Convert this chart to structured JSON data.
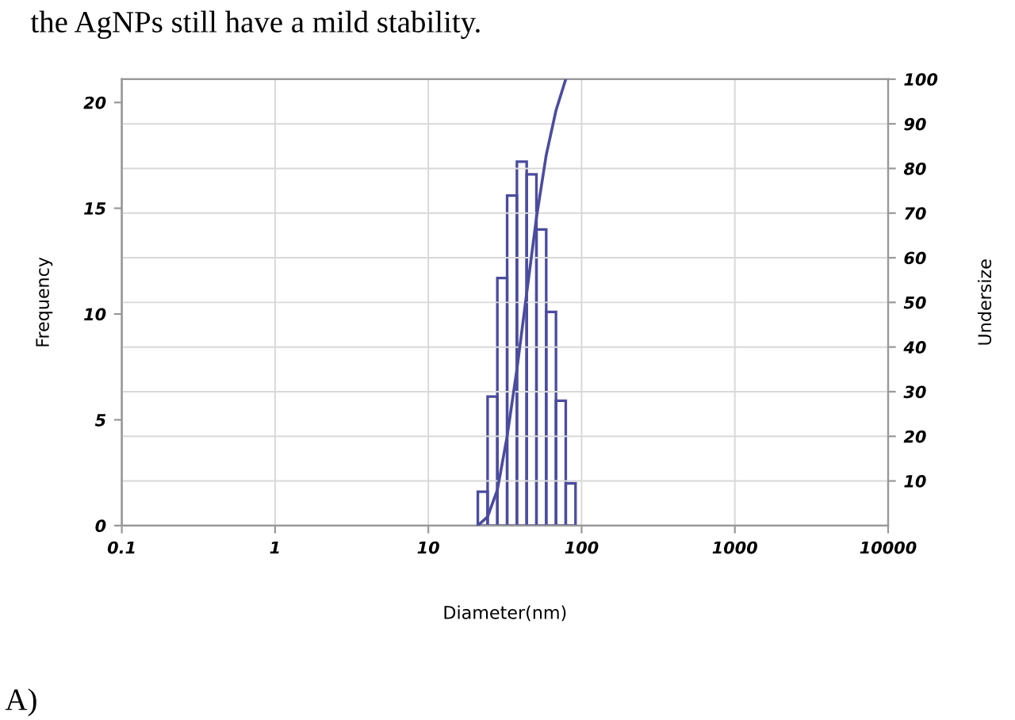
{
  "chart_data": {
    "type": "histogram",
    "xlabel": "Diameter(nm)",
    "ylabel": "Frequency",
    "y2label": "Undersize",
    "annotations": [
      "the AgNPs still have a mild stability.",
      "A)"
    ],
    "log": "x",
    "grid": true,
    "xlim": [
      0.1,
      10000
    ],
    "xticks": [
      0.1,
      1,
      10,
      100,
      1000,
      10000
    ],
    "ylim": [
      0,
      21.1
    ],
    "yticks": [
      0,
      5,
      10,
      15,
      20
    ],
    "y2lim": [
      0,
      100
    ],
    "y2ticks": [
      10,
      20,
      30,
      40,
      50,
      60,
      70,
      80,
      90,
      100
    ],
    "series": [
      {
        "color": "#4b4c9e",
        "bins": [
          21.04,
          24.36,
          28.21,
          32.67,
          37.84,
          43.82,
          50.75,
          58.77,
          68.06,
          78.82,
          91.28
        ],
        "values": [
          1.6,
          6.1,
          11.7,
          15.6,
          17.2,
          16.6,
          14.0,
          10.1,
          5.9,
          2.0
        ]
      },
      {
        "type": "line",
        "axis": "y2",
        "color": "#4b4c9e",
        "x": [
          21.04,
          24.36,
          28.21,
          32.67,
          37.84,
          43.82,
          50.75,
          58.77,
          68.06,
          78.82
        ],
        "values": [
          0,
          2,
          8,
          20,
          35,
          52,
          69,
          83,
          93,
          100
        ]
      }
    ]
  }
}
